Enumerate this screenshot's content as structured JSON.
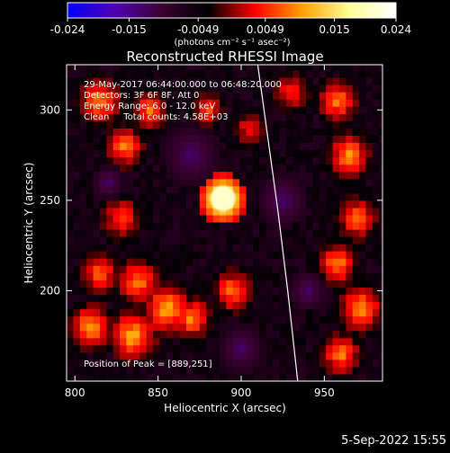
{
  "colorbar": {
    "min": -0.024,
    "max": 0.024,
    "tick_labels": [
      "-0.024",
      "-0.015",
      "-0.0049",
      "0.0049",
      "0.015",
      "0.024"
    ],
    "unit_label": "(photons cm⁻² s⁻¹ asec⁻²)",
    "color_stops": [
      "#0000ff",
      "#5000b4",
      "#3c0032",
      "#000000",
      "#ff0000",
      "#ffa000",
      "#ffff96",
      "#ffffff"
    ]
  },
  "chart_data": {
    "type": "heatmap",
    "title": "Reconstructed RHESSI Image",
    "xlabel": "Heliocentric X (arcsec)",
    "ylabel": "Heliocentric Y (arcsec)",
    "xlim": [
      795,
      985
    ],
    "ylim": [
      150,
      325
    ],
    "x_ticks": [
      800,
      850,
      900,
      950
    ],
    "y_ticks": [
      200,
      250,
      300
    ],
    "peak": {
      "x": 889,
      "y": 251,
      "label": "Position of Peak = [889,251]"
    },
    "annotations": [
      "29-May-2017 06:44:00.000 to 06:48:20.000",
      "Detectors: 3F 6F 8F, Att 0",
      "Energy Range: 6.0 - 12.0 keV",
      "Clean     Total counts: 4.58E+03"
    ],
    "limb_curve": {
      "x": [
        910,
        916,
        922,
        928,
        934
      ],
      "y": [
        325,
        285,
        245,
        200,
        150
      ]
    }
  },
  "timestamp": "5-Sep-2022 15:55"
}
